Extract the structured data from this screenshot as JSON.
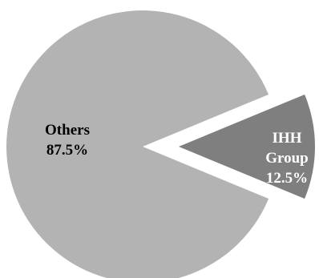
{
  "chart_data": {
    "type": "pie",
    "title": "",
    "legend": "none",
    "slices": [
      {
        "label": "Others",
        "value": 87.5,
        "value_label": "87.5%",
        "color": "#b3b3b3",
        "label_color": "#000000",
        "exploded": false
      },
      {
        "label": "IHH Group",
        "label_lines": [
          "IHH",
          "Group"
        ],
        "value": 12.5,
        "value_label": "12.5%",
        "color": "#7f7f7f",
        "label_color": "#ffffff",
        "exploded": true
      }
    ]
  }
}
